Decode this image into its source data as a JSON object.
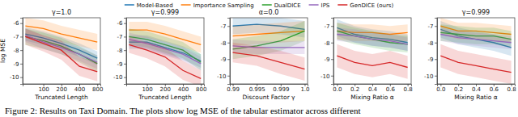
{
  "caption": "Figure 2: Results on Taxi Domain. The plots show log MSE of the tabular estimator across different",
  "chart_data": [
    {
      "type": "line",
      "title": "γ=1.0",
      "x_label": "Truncated Length",
      "y_label": "log MSE",
      "log": "x",
      "x": [
        50,
        100,
        200,
        400,
        800
      ],
      "xlim": [
        45,
        900
      ],
      "xticks": [
        100,
        200,
        400,
        800
      ],
      "ylim": [
        -10.5,
        -5.6
      ],
      "yticks": [
        -6,
        -7,
        -8,
        -9,
        -10
      ],
      "series": [
        {
          "color": "#1f77b4",
          "values": [
            -6.8,
            -7.1,
            -7.5,
            -8.0,
            -8.6
          ],
          "errors": [
            0.5,
            0.5,
            0.5,
            0.5,
            0.5
          ]
        },
        {
          "color": "#ff7f0e",
          "values": [
            -6.2,
            -6.4,
            -6.8,
            -7.1,
            -7.4
          ],
          "errors": [
            0.6,
            0.6,
            0.6,
            0.6,
            0.6
          ]
        },
        {
          "color": "#2ca02c",
          "values": [
            -7.0,
            -7.3,
            -7.7,
            -8.3,
            -9.0
          ],
          "errors": [
            0.6,
            0.6,
            0.6,
            0.6,
            0.6
          ]
        },
        {
          "color": "#9467bd",
          "values": [
            -6.9,
            -7.4,
            -7.8,
            -8.3,
            -8.9
          ],
          "errors": [
            0.5,
            0.5,
            0.5,
            0.5,
            0.5
          ]
        },
        {
          "color": "#d62728",
          "values": [
            -7.0,
            -7.5,
            -8.0,
            -9.2,
            -9.6
          ],
          "errors": [
            0.6,
            0.6,
            0.7,
            0.7,
            0.7
          ]
        }
      ]
    },
    {
      "type": "line",
      "title": "γ=0.999",
      "x_label": "Truncated Length",
      "log": "x",
      "x": [
        50,
        100,
        200,
        400,
        800
      ],
      "xlim": [
        45,
        900
      ],
      "xticks": [
        100,
        200,
        400,
        800
      ],
      "ylim": [
        -10.5,
        -5.6
      ],
      "yticks": [
        -6,
        -7,
        -8,
        -9,
        -10
      ],
      "series": [
        {
          "color": "#1f77b4",
          "values": [
            -7.4,
            -7.4,
            -7.8,
            -8.2,
            -8.8
          ],
          "errors": [
            0.5,
            0.5,
            0.5,
            0.5,
            0.5
          ]
        },
        {
          "color": "#ff7f0e",
          "values": [
            -6.5,
            -6.5,
            -6.8,
            -7.2,
            -7.6
          ],
          "errors": [
            0.6,
            0.6,
            0.6,
            0.6,
            0.6
          ]
        },
        {
          "color": "#2ca02c",
          "values": [
            -7.0,
            -7.2,
            -7.6,
            -8.0,
            -8.9
          ],
          "errors": [
            0.6,
            0.6,
            0.6,
            0.6,
            0.6
          ]
        },
        {
          "color": "#9467bd",
          "values": [
            -7.2,
            -7.5,
            -7.9,
            -8.3,
            -9.0
          ],
          "errors": [
            0.5,
            0.5,
            0.5,
            0.5,
            0.5
          ]
        },
        {
          "color": "#d62728",
          "values": [
            -7.6,
            -8.0,
            -8.5,
            -9.5,
            -10.1
          ],
          "errors": [
            0.6,
            0.6,
            0.7,
            0.7,
            0.6
          ]
        }
      ]
    },
    {
      "type": "line",
      "title": "α=0.0",
      "x_label": "Discount Factor γ",
      "categories": [
        "0.99",
        "0.995",
        "0.999",
        "1.0"
      ],
      "ylim": [
        -10.5,
        -6.5
      ],
      "yticks": [
        -7,
        -8,
        -9,
        -10
      ],
      "series": [
        {
          "color": "#1f77b4",
          "values": [
            -7.0,
            -6.9,
            -7.0,
            -7.2
          ],
          "errors": [
            0.5,
            0.5,
            0.5,
            0.5
          ]
        },
        {
          "color": "#ff7f0e",
          "values": [
            -7.6,
            -7.5,
            -7.4,
            -7.3
          ],
          "errors": [
            0.6,
            0.6,
            0.6,
            0.6
          ]
        },
        {
          "color": "#2ca02c",
          "values": [
            -8.4,
            -8.2,
            -7.9,
            -7.3
          ],
          "errors": [
            0.6,
            0.6,
            0.6,
            0.6
          ]
        },
        {
          "color": "#9467bd",
          "values": [
            -8.2,
            -8.3,
            -8.3,
            -8.3
          ],
          "errors": [
            0.4,
            0.4,
            0.4,
            0.4
          ]
        },
        {
          "color": "#d62728",
          "values": [
            -8.6,
            -8.8,
            -9.2,
            -9.6
          ],
          "errors": [
            0.6,
            0.6,
            0.7,
            0.7
          ]
        }
      ]
    },
    {
      "type": "line",
      "x_label": "Mixing Ratio α",
      "legend": "top",
      "x": [
        0.0,
        0.2,
        0.4,
        0.6,
        0.8
      ],
      "xlim": [
        -0.04,
        0.84
      ],
      "xticks": [
        {
          "value": 0,
          "label": "0.0"
        },
        {
          "value": 0.2,
          "label": "0.2"
        },
        {
          "value": 0.4,
          "label": "0.4"
        },
        {
          "value": 0.6,
          "label": "0.6"
        },
        {
          "value": 0.8,
          "label": "0.8"
        }
      ],
      "ylim": [
        -10.5,
        -6.5
      ],
      "yticks": [
        -7,
        -8,
        -9,
        -10
      ],
      "series": [
        {
          "name": "Model-Based",
          "color": "#1f77b4",
          "values": [
            -7.1,
            -7.5,
            -7.7,
            -7.8,
            -8.0
          ],
          "errors": [
            0.5,
            0.5,
            0.5,
            0.5,
            0.5
          ]
        },
        {
          "name": "Importance Sampling",
          "color": "#ff7f0e",
          "values": [
            -7.3,
            -7.4,
            -7.4,
            -7.5,
            -7.4
          ],
          "errors": [
            0.5,
            0.5,
            0.5,
            0.5,
            0.5
          ]
        },
        {
          "name": "DualDICE",
          "color": "#2ca02c",
          "values": [
            -7.3,
            -7.6,
            -7.8,
            -8.0,
            -8.1
          ],
          "errors": [
            0.5,
            0.5,
            0.5,
            0.5,
            0.5
          ]
        },
        {
          "name": "IPS",
          "color": "#9467bd",
          "values": [
            -7.5,
            -7.6,
            -7.8,
            -7.9,
            -8.1
          ],
          "errors": [
            0.4,
            0.4,
            0.4,
            0.4,
            0.4
          ]
        },
        {
          "name": "GenDICE (ours)",
          "color": "#d62728",
          "values": [
            -8.8,
            -9.2,
            -9.4,
            -9.2,
            -9.5
          ],
          "errors": [
            0.7,
            0.7,
            0.7,
            0.7,
            0.7
          ]
        }
      ]
    },
    {
      "type": "line",
      "title": "γ=0.999",
      "x_label": "Mixing Ratio α",
      "x": [
        0.0,
        0.2,
        0.4,
        0.6,
        0.8
      ],
      "xlim": [
        -0.04,
        0.84
      ],
      "xticks": [
        {
          "value": 0,
          "label": "0.0"
        },
        {
          "value": 0.2,
          "label": "0.2"
        },
        {
          "value": 0.4,
          "label": "0.4"
        },
        {
          "value": 0.6,
          "label": "0.6"
        },
        {
          "value": 0.8,
          "label": "0.8"
        }
      ],
      "ylim": [
        -10.5,
        -6.5
      ],
      "yticks": [
        -7,
        -8,
        -9,
        -10
      ],
      "series": [
        {
          "color": "#1f77b4",
          "values": [
            -7.2,
            -7.6,
            -7.8,
            -8.0,
            -8.3
          ],
          "errors": [
            0.5,
            0.5,
            0.5,
            0.5,
            0.5
          ]
        },
        {
          "color": "#ff7f0e",
          "values": [
            -7.0,
            -7.3,
            -7.3,
            -7.4,
            -7.5
          ],
          "errors": [
            0.5,
            0.5,
            0.5,
            0.5,
            0.5
          ]
        },
        {
          "color": "#2ca02c",
          "values": [
            -7.4,
            -7.5,
            -7.6,
            -7.6,
            -7.8
          ],
          "errors": [
            0.5,
            0.5,
            0.5,
            0.5,
            0.5
          ]
        },
        {
          "color": "#9467bd",
          "values": [
            -7.5,
            -7.7,
            -7.8,
            -7.9,
            -8.0
          ],
          "errors": [
            0.4,
            0.4,
            0.4,
            0.4,
            0.4
          ]
        },
        {
          "color": "#d62728",
          "values": [
            -8.8,
            -9.2,
            -9.4,
            -9.6,
            -9.8
          ],
          "errors": [
            0.7,
            0.7,
            0.7,
            0.7,
            0.7
          ]
        }
      ]
    }
  ]
}
